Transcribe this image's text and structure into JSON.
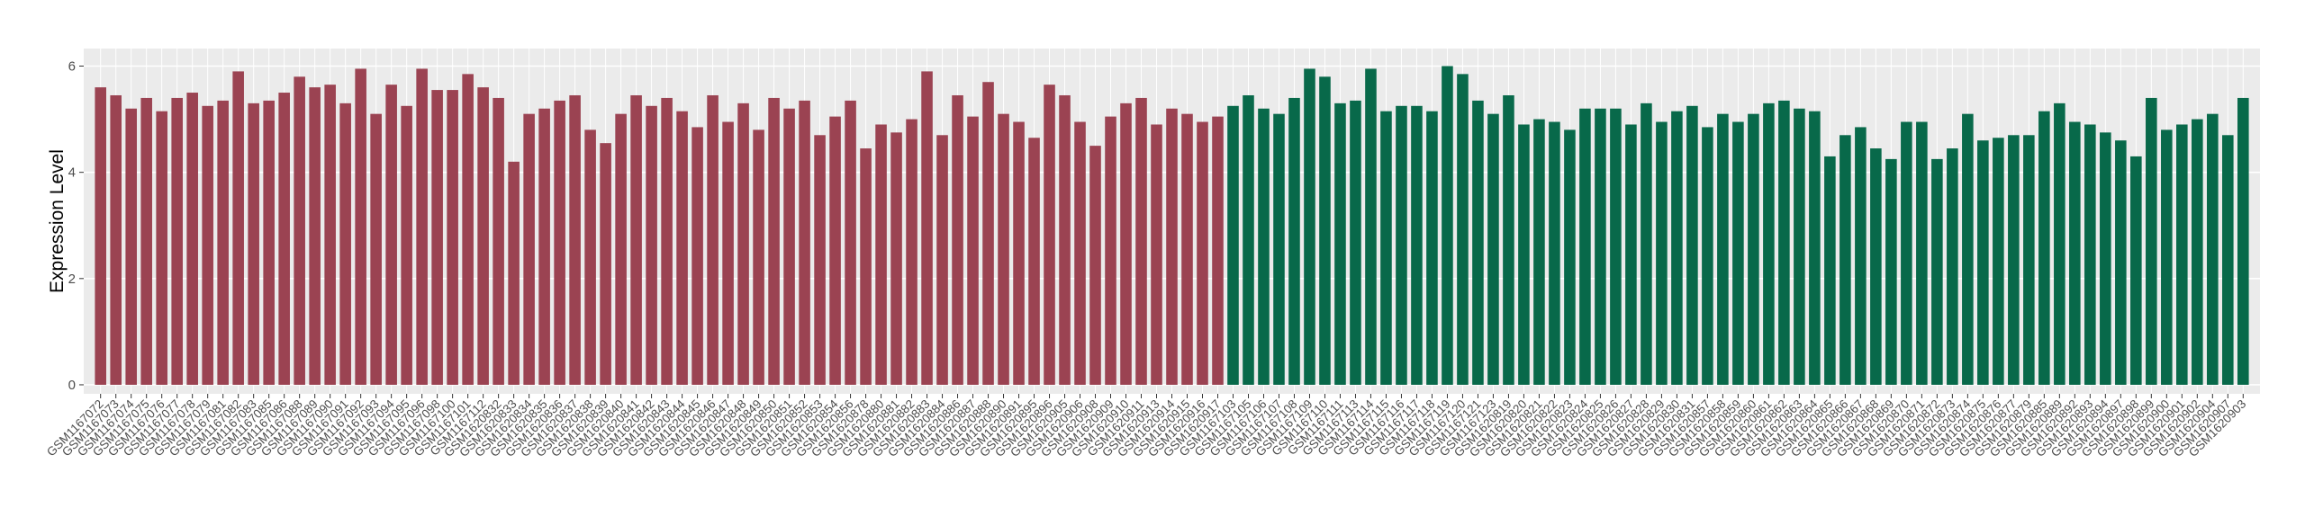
{
  "chart_data": {
    "type": "bar",
    "y_label": "Expression Level",
    "ylim": [
      -0.17,
      6.33
    ],
    "yticks": [
      0,
      2,
      4,
      6
    ],
    "grid": true,
    "groups": [
      {
        "color": "#9b4352",
        "categories": [
          "GSM1167072",
          "GSM1167073",
          "GSM1167074",
          "GSM1167075",
          "GSM1167076",
          "GSM1167077",
          "GSM1167078",
          "GSM1167079",
          "GSM1167081",
          "GSM1167082",
          "GSM1167083",
          "GSM1167085",
          "GSM1167086",
          "GSM1167088",
          "GSM1167089",
          "GSM1167090",
          "GSM1167091",
          "GSM1167092",
          "GSM1167093",
          "GSM1167094",
          "GSM1167095",
          "GSM1167096",
          "GSM1167098",
          "GSM1167100",
          "GSM1167101",
          "GSM1167112",
          "GSM1620832",
          "GSM1620833",
          "GSM1620834",
          "GSM1620835",
          "GSM1620836",
          "GSM1620837",
          "GSM1620838",
          "GSM1620839",
          "GSM1620840",
          "GSM1620841",
          "GSM1620842",
          "GSM1620843",
          "GSM1620844",
          "GSM1620845",
          "GSM1620846",
          "GSM1620847",
          "GSM1620848",
          "GSM1620849",
          "GSM1620850",
          "GSM1620851",
          "GSM1620852",
          "GSM1620853",
          "GSM1620854",
          "GSM1620856",
          "GSM1620878",
          "GSM1620880",
          "GSM1620881",
          "GSM1620882",
          "GSM1620883",
          "GSM1620884",
          "GSM1620886",
          "GSM1620887",
          "GSM1620888",
          "GSM1620890",
          "GSM1620891",
          "GSM1620895",
          "GSM1620896",
          "GSM1620905",
          "GSM1620906",
          "GSM1620908",
          "GSM1620909",
          "GSM1620910",
          "GSM1620911",
          "GSM1620913",
          "GSM1620914",
          "GSM1620915",
          "GSM1620916",
          "GSM1620917"
        ],
        "values": [
          5.6,
          5.45,
          5.2,
          5.4,
          5.15,
          5.4,
          5.5,
          5.25,
          5.35,
          5.9,
          5.3,
          5.35,
          5.5,
          5.8,
          5.6,
          5.65,
          5.3,
          5.95,
          5.1,
          5.65,
          5.25,
          5.95,
          5.55,
          5.55,
          5.85,
          5.6,
          5.4,
          4.2,
          5.1,
          5.2,
          5.35,
          5.45,
          4.8,
          4.55,
          5.1,
          5.45,
          5.25,
          5.4,
          5.15,
          4.85,
          5.45,
          4.95,
          5.3,
          4.8,
          5.4,
          5.2,
          5.35,
          4.7,
          5.05,
          5.35,
          4.45,
          4.9,
          4.75,
          5.0,
          5.9,
          4.7,
          5.45,
          5.05,
          5.7,
          5.1,
          4.95,
          4.65,
          5.65,
          5.45,
          4.95,
          4.5,
          5.05,
          5.3,
          5.4,
          4.9,
          5.2,
          5.1,
          4.95,
          5.05
        ]
      },
      {
        "color": "#08694a",
        "categories": [
          "GSM1167103",
          "GSM1167105",
          "GSM1167106",
          "GSM1167107",
          "GSM1167108",
          "GSM1167109",
          "GSM1167110",
          "GSM1167111",
          "GSM1167113",
          "GSM1167114",
          "GSM1167115",
          "GSM1167116",
          "GSM1167117",
          "GSM1167118",
          "GSM1167119",
          "GSM1167120",
          "GSM1167121",
          "GSM1167123",
          "GSM1620819",
          "GSM1620820",
          "GSM1620821",
          "GSM1620822",
          "GSM1620823",
          "GSM1620824",
          "GSM1620825",
          "GSM1620826",
          "GSM1620827",
          "GSM1620828",
          "GSM1620829",
          "GSM1620830",
          "GSM1620831",
          "GSM1620857",
          "GSM1620858",
          "GSM1620859",
          "GSM1620860",
          "GSM1620861",
          "GSM1620862",
          "GSM1620863",
          "GSM1620864",
          "GSM1620865",
          "GSM1620866",
          "GSM1620867",
          "GSM1620868",
          "GSM1620869",
          "GSM1620870",
          "GSM1620871",
          "GSM1620872",
          "GSM1620873",
          "GSM1620874",
          "GSM1620875",
          "GSM1620876",
          "GSM1620877",
          "GSM1620879",
          "GSM1620885",
          "GSM1620889",
          "GSM1620892",
          "GSM1620893",
          "GSM1620894",
          "GSM1620897",
          "GSM1620898",
          "GSM1620899",
          "GSM1620900",
          "GSM1620901",
          "GSM1620902",
          "GSM1620904",
          "GSM1620907",
          "GSM1620903"
        ],
        "values": [
          5.25,
          5.45,
          5.2,
          5.1,
          5.4,
          5.95,
          5.8,
          5.3,
          5.35,
          5.95,
          5.15,
          5.25,
          5.25,
          5.15,
          6.0,
          5.85,
          5.35,
          5.1,
          5.45,
          4.9,
          5.0,
          4.95,
          4.8,
          5.2,
          5.2,
          5.2,
          4.9,
          5.3,
          4.95,
          5.15,
          5.25,
          4.85,
          5.1,
          4.95,
          5.1,
          5.3,
          5.35,
          5.2,
          5.15,
          4.3,
          4.7,
          4.85,
          4.45,
          4.25,
          4.95,
          4.95,
          4.25,
          4.45,
          5.1,
          4.6,
          4.65,
          4.7,
          4.7,
          5.15,
          5.3,
          4.95,
          4.9,
          4.75,
          4.6,
          4.3,
          5.4,
          4.8,
          4.9,
          5.0,
          5.1,
          4.7,
          5.4
        ]
      }
    ]
  }
}
